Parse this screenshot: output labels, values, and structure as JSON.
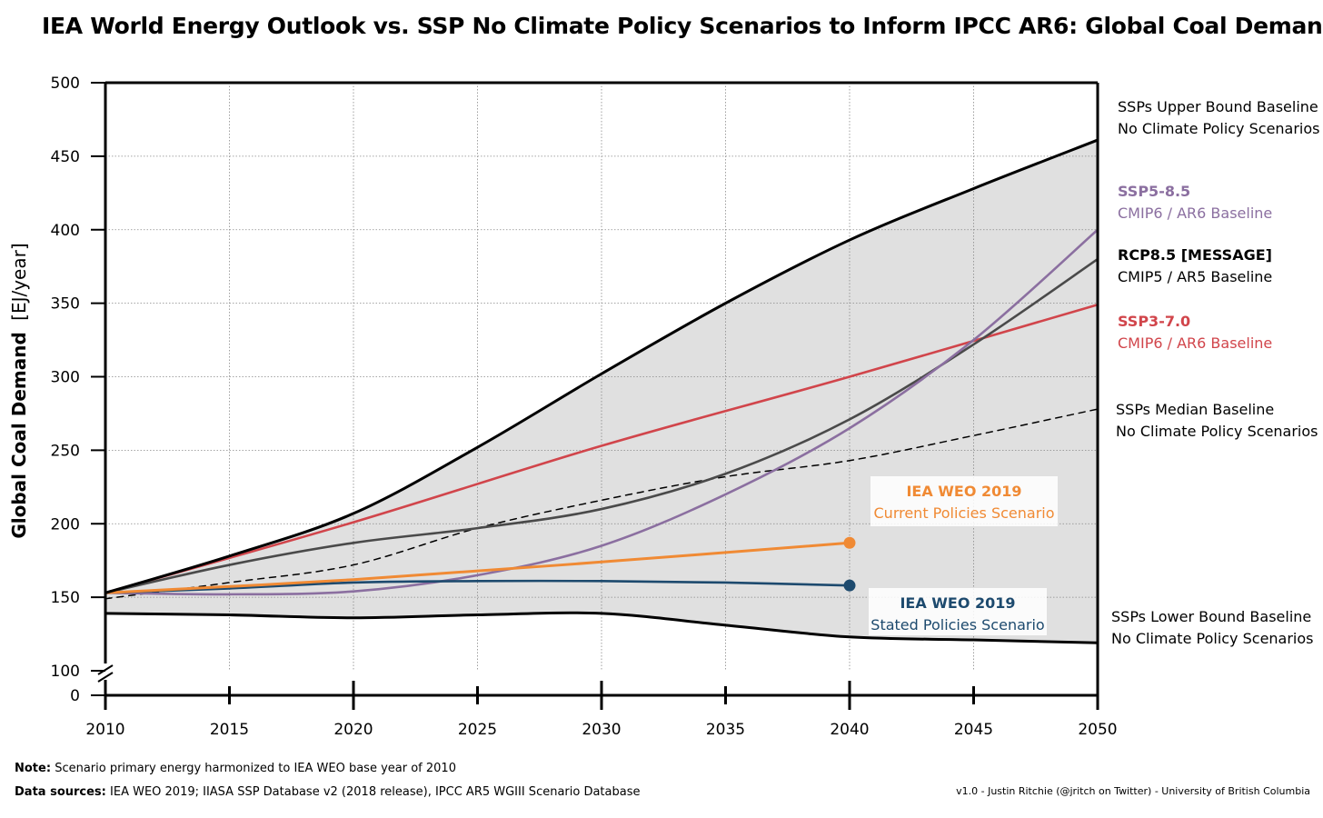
{
  "title": "IEA World Energy Outlook vs. SSP No Climate Policy Scenarios to Inform IPCC AR6: Global Coal Demand",
  "notes": {
    "note_label": "Note:",
    "note_text": "Scenario primary energy harmonized to IEA WEO base year of 2010",
    "sources_label": "Data sources:",
    "sources_text": "IEA WEO 2019; IIASA SSP Database v2 (2018 release), IPCC AR5 WGIII Scenario Database",
    "credit": "v1.0 - Justin Ritchie (@jritch on Twitter) - University of British Columbia"
  },
  "chart_data": {
    "type": "line",
    "title": "IEA World Energy Outlook vs. SSP No Climate Policy Scenarios to Inform IPCC AR6: Global Coal Demand",
    "ylabel_main": "Global Coal Demand",
    "ylabel_unit": "[EJ/year]",
    "xlim": [
      2010,
      2050
    ],
    "ylim": [
      100,
      500
    ],
    "y_axis_break": true,
    "x_ticks": [
      2010,
      2015,
      2020,
      2025,
      2030,
      2035,
      2040,
      2045,
      2050
    ],
    "y_ticks": [
      100,
      150,
      200,
      250,
      300,
      350,
      400,
      450,
      500
    ],
    "y_zero_label": "0",
    "grid": "dotted",
    "colors": {
      "band": "#e0e0e0",
      "bound": "#000000",
      "rcp85": "#4a4a4a",
      "ssp585": "#8b6fa0",
      "ssp370": "#d1454b",
      "median": "#000000",
      "weo_cps": "#f08a34",
      "weo_sps": "#1d4a6e"
    },
    "series": [
      {
        "key": "upper",
        "name": "SSPs Upper Bound Baseline No Climate Policy Scenarios",
        "x": [
          2010,
          2015,
          2020,
          2025,
          2030,
          2035,
          2040,
          2045,
          2050
        ],
        "y": [
          153,
          178,
          207,
          252,
          302,
          350,
          393,
          428,
          461
        ]
      },
      {
        "key": "lower",
        "name": "SSPs Lower Bound Baseline No Climate Policy Scenarios",
        "x": [
          2010,
          2015,
          2020,
          2025,
          2030,
          2035,
          2040,
          2045,
          2050
        ],
        "y": [
          139,
          138,
          136,
          138,
          139,
          131,
          123,
          121,
          119
        ]
      },
      {
        "key": "median",
        "name": "SSPs Median Baseline No Climate Policy Scenarios",
        "x": [
          2010,
          2015,
          2020,
          2025,
          2030,
          2035,
          2040,
          2045,
          2050
        ],
        "y": [
          149,
          160,
          172,
          197,
          216,
          232,
          243,
          260,
          278
        ]
      },
      {
        "key": "rcp85",
        "name": "RCP8.5 [MESSAGE] CMIP5 / AR5 Baseline",
        "x": [
          2010,
          2015,
          2020,
          2025,
          2030,
          2035,
          2040,
          2045,
          2050
        ],
        "y": [
          153,
          172,
          187,
          197,
          210,
          234,
          271,
          322,
          380
        ]
      },
      {
        "key": "ssp585",
        "name": "SSP5-8.5 CMIP6 / AR6 Baseline",
        "x": [
          2010,
          2015,
          2020,
          2025,
          2030,
          2035,
          2040,
          2045,
          2050
        ],
        "y": [
          153,
          152,
          154,
          165,
          185,
          220,
          265,
          325,
          400
        ]
      },
      {
        "key": "ssp370",
        "name": "SSP3-7.0 CMIP6 / AR6 Baseline",
        "x": [
          2010,
          2020,
          2030,
          2040,
          2050
        ],
        "y": [
          153,
          201,
          253,
          300,
          349
        ]
      },
      {
        "key": "weo_cps",
        "name": "IEA WEO 2019 Current Policies Scenario",
        "x": [
          2010,
          2020,
          2030,
          2040
        ],
        "y": [
          153,
          162,
          174,
          187
        ]
      },
      {
        "key": "weo_sps",
        "name": "IEA WEO 2019 Stated Policies Scenario",
        "x": [
          2010,
          2015,
          2020,
          2025,
          2030,
          2035,
          2040
        ],
        "y": [
          153,
          156,
          160,
          161,
          161,
          160,
          158
        ]
      }
    ],
    "annotations": {
      "upper": [
        "SSPs Upper Bound Baseline",
        "No Climate Policy Scenarios"
      ],
      "ssp585": [
        "SSP5-8.5",
        "CMIP6 / AR6  Baseline"
      ],
      "rcp85": [
        "RCP8.5 [MESSAGE]",
        "CMIP5 / AR5 Baseline"
      ],
      "ssp370": [
        "SSP3-7.0",
        "CMIP6 / AR6  Baseline"
      ],
      "median": [
        "SSPs Median Baseline",
        "No Climate Policy Scenarios"
      ],
      "lower": [
        "SSPs Lower Bound Baseline",
        "No Climate Policy Scenarios"
      ],
      "weo_cps": [
        "IEA WEO 2019",
        "Current Policies Scenario"
      ],
      "weo_sps": [
        "IEA WEO 2019",
        "Stated Policies Scenario"
      ]
    }
  }
}
